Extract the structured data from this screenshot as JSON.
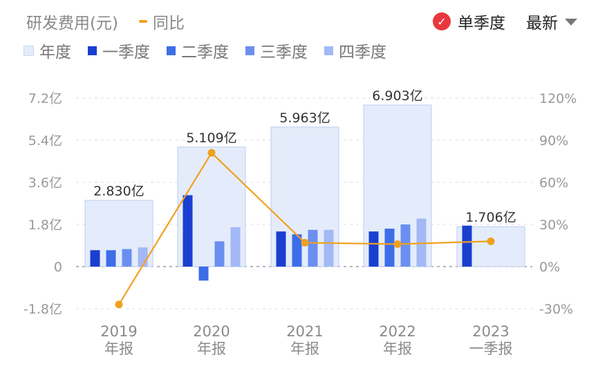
{
  "header": {
    "title": "研发费用(元)",
    "yoy_label": "同比",
    "mode_label": "单季度",
    "sort_label": "最新",
    "check_icon": "✓"
  },
  "legend": [
    {
      "label": "年度",
      "color": "#e4ecfb"
    },
    {
      "label": "一季度",
      "color": "#1a3fd0"
    },
    {
      "label": "二季度",
      "color": "#3d6ee8"
    },
    {
      "label": "三季度",
      "color": "#6b8ff0"
    },
    {
      "label": "四季度",
      "color": "#a3b9f5"
    }
  ],
  "chart_data": {
    "type": "bar",
    "categories": [
      "2019\n年报",
      "2020\n年报",
      "2021\n年报",
      "2022\n年报",
      "2023\n一季报"
    ],
    "left_axis": {
      "min": -1.8,
      "max": 7.2,
      "ticks": [
        -1.8,
        0,
        1.8,
        3.6,
        5.4,
        7.2
      ],
      "tick_labels": [
        "-1.8亿",
        "0",
        "1.8亿",
        "3.6亿",
        "5.4亿",
        "7.2亿"
      ]
    },
    "right_axis": {
      "min": -30,
      "max": 120,
      "ticks": [
        -30,
        0,
        30,
        60,
        90,
        120
      ],
      "tick_labels": [
        "-30%",
        "0%",
        "30%",
        "60%",
        "90%",
        "120%"
      ]
    },
    "annual": {
      "name": "年度",
      "values": [
        2.83,
        5.109,
        5.963,
        6.903,
        1.706
      ],
      "labels": [
        "2.830亿",
        "5.109亿",
        "5.963亿",
        "6.903亿",
        "1.706亿"
      ]
    },
    "series": [
      {
        "name": "一季度",
        "values": [
          0.7,
          3.05,
          1.5,
          1.5,
          1.75
        ]
      },
      {
        "name": "二季度",
        "values": [
          0.7,
          -0.6,
          1.38,
          1.62,
          null
        ]
      },
      {
        "name": "三季度",
        "values": [
          0.75,
          1.08,
          1.57,
          1.8,
          null
        ]
      },
      {
        "name": "四季度",
        "values": [
          0.82,
          1.68,
          1.57,
          2.05,
          null
        ]
      }
    ],
    "yoy": {
      "name": "同比",
      "values": [
        -27,
        81,
        17,
        16,
        18
      ],
      "color": "#f0a020"
    },
    "grid": true
  }
}
